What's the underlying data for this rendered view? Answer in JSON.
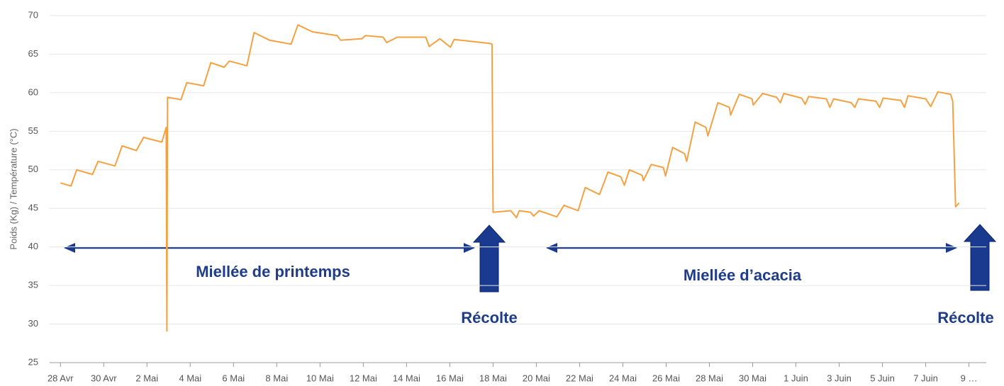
{
  "chart_data": {
    "type": "line",
    "y_label": "Poids (Kg) / Température (°C)",
    "color": "#f5a142",
    "grid": true,
    "ylim": [
      25,
      70
    ],
    "yticks": [
      25,
      30,
      35,
      40,
      45,
      50,
      55,
      60,
      65,
      70
    ],
    "xlim": [
      -0.5,
      42.8
    ],
    "xticks": [
      {
        "value": 0,
        "label": "28 Avr"
      },
      {
        "value": 2,
        "label": "30 Avr"
      },
      {
        "value": 4,
        "label": "2 Mai"
      },
      {
        "value": 6,
        "label": "4 Mai"
      },
      {
        "value": 8,
        "label": "6 Mai"
      },
      {
        "value": 10,
        "label": "8 Mai"
      },
      {
        "value": 12,
        "label": "10 Mai"
      },
      {
        "value": 14,
        "label": "12 Mai"
      },
      {
        "value": 16,
        "label": "14 Mai"
      },
      {
        "value": 18,
        "label": "16 Mai"
      },
      {
        "value": 20,
        "label": "18 Mai"
      },
      {
        "value": 22,
        "label": "20 Mai"
      },
      {
        "value": 24,
        "label": "22 Mai"
      },
      {
        "value": 26,
        "label": "24 Mai"
      },
      {
        "value": 28,
        "label": "26 Mai"
      },
      {
        "value": 30,
        "label": "28 Mai"
      },
      {
        "value": 32,
        "label": "30 Mai"
      },
      {
        "value": 34,
        "label": "1 Juin"
      },
      {
        "value": 36,
        "label": "3 Juin"
      },
      {
        "value": 38,
        "label": "5 Juin"
      },
      {
        "value": 40,
        "label": "7 Juin"
      },
      {
        "value": 42,
        "label": "9 …"
      }
    ],
    "x": [
      0,
      0.49,
      0.75,
      1.48,
      1.74,
      2.52,
      2.85,
      3.51,
      3.84,
      4.69,
      4.89,
      4.92,
      4.95,
      5.57,
      5.84,
      6.62,
      6.95,
      7.57,
      7.8,
      8.62,
      8.95,
      9.67,
      10.66,
      10.98,
      11.64,
      12.79,
      12.95,
      13.93,
      14.1,
      14.92,
      15.08,
      15.57,
      16.89,
      17.05,
      17.54,
      18.03,
      18.2,
      19.84,
      19.95,
      20.0,
      20.82,
      21.08,
      21.21,
      21.74,
      21.87,
      22.13,
      22.95,
      23.28,
      23.93,
      24.26,
      24.92,
      25.31,
      25.9,
      26.07,
      26.3,
      26.89,
      26.95,
      27.31,
      27.87,
      27.97,
      28.3,
      28.85,
      28.95,
      29.34,
      29.84,
      29.93,
      30.39,
      30.92,
      30.98,
      31.38,
      31.97,
      32.03,
      32.46,
      33.11,
      33.28,
      33.44,
      34.26,
      34.43,
      34.59,
      35.41,
      35.57,
      35.74,
      36.56,
      36.72,
      36.89,
      37.7,
      37.87,
      38.03,
      38.85,
      39.02,
      39.18,
      40.0,
      40.23,
      40.56,
      41.15,
      41.25,
      41.38,
      41.54
    ],
    "values": [
      48.3,
      47.9,
      50.0,
      49.4,
      51.1,
      50.5,
      53.1,
      52.5,
      54.2,
      53.6,
      55.5,
      29.1,
      59.4,
      59.1,
      61.3,
      60.9,
      63.9,
      63.3,
      64.1,
      63.5,
      67.8,
      66.8,
      66.3,
      68.8,
      67.9,
      67.4,
      66.8,
      67.0,
      67.4,
      67.2,
      66.5,
      67.2,
      67.2,
      66.0,
      67.0,
      65.9,
      66.9,
      66.4,
      66.3,
      44.5,
      44.7,
      43.8,
      44.7,
      44.5,
      44.0,
      44.7,
      43.9,
      45.4,
      44.7,
      47.7,
      46.8,
      49.7,
      49.1,
      48.0,
      50.0,
      49.3,
      48.6,
      50.7,
      50.3,
      49.2,
      52.9,
      52.1,
      51.1,
      56.2,
      55.5,
      54.4,
      58.7,
      58.1,
      57.1,
      59.8,
      59.2,
      58.4,
      59.9,
      59.4,
      58.7,
      59.9,
      59.3,
      58.5,
      59.5,
      59.2,
      58.1,
      59.2,
      58.7,
      58.1,
      59.2,
      58.9,
      58.1,
      59.3,
      59.0,
      58.1,
      59.6,
      59.2,
      58.2,
      60.1,
      59.8,
      58.9,
      45.2,
      45.7
    ],
    "annotations": [
      "Miellée de printemps",
      "Récolte",
      "Miellée d’acacia",
      "Récolte"
    ]
  }
}
